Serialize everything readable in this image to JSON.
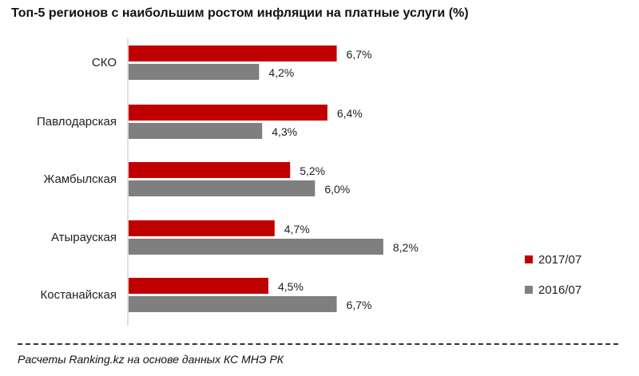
{
  "chart_data": {
    "type": "bar",
    "orientation": "horizontal",
    "title": "Топ-5 регионов с наибольшим ростом инфляции на платные услуги (%)",
    "categories": [
      "СКО",
      "Павлодарская",
      "Жамбылская",
      "Атырауская",
      "Костанайская"
    ],
    "series": [
      {
        "name": "2017/07",
        "color": "#c00000",
        "values": [
          6.7,
          6.4,
          5.2,
          4.7,
          4.5
        ],
        "labels": [
          "6,7%",
          "6,4%",
          "5,2%",
          "4,7%",
          "4,5%"
        ]
      },
      {
        "name": "2016/07",
        "color": "#7f7f7f",
        "values": [
          4.2,
          4.3,
          6.0,
          8.2,
          6.7
        ],
        "labels": [
          "4,2%",
          "4,3%",
          "6,0%",
          "8,2%",
          "6,7%"
        ]
      }
    ],
    "xlim": [
      0,
      9
    ],
    "grid": false,
    "legend_position": "bottom-right"
  },
  "footer": {
    "source": "Расчеты Ranking.kz на основе данных КС МНЭ РК"
  }
}
